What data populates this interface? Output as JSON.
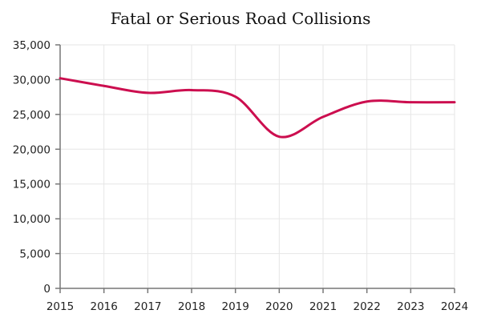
{
  "chart_data": {
    "type": "line",
    "title": "Fatal or Serious Road Collisions",
    "xlabel": "",
    "ylabel": "",
    "x": [
      2015,
      2016,
      2017,
      2018,
      2019,
      2020,
      2021,
      2022,
      2023,
      2024
    ],
    "series": [
      {
        "values": [
          30200,
          29100,
          28100,
          28500,
          27550,
          21800,
          24650,
          26850,
          26750,
          26750
        ],
        "color": "#cc0e4f"
      }
    ],
    "ylim": [
      0,
      35000
    ],
    "yticks": [
      0,
      5000,
      10000,
      15000,
      20000,
      25000,
      30000,
      35000
    ],
    "ytick_labels": [
      "0",
      "5,000",
      "10,000",
      "15,000",
      "20,000",
      "25,000",
      "30,000",
      "35,000"
    ],
    "xtick_labels": [
      "2015",
      "2016",
      "2017",
      "2018",
      "2019",
      "2020",
      "2021",
      "2022",
      "2023",
      "2024"
    ],
    "grid": true,
    "smooth": true
  }
}
